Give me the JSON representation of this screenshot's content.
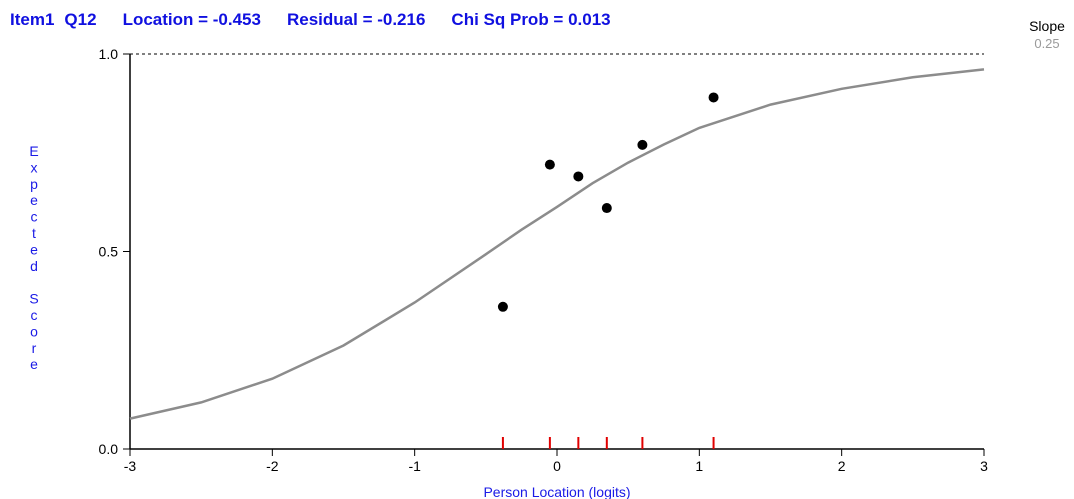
{
  "header": {
    "item": "Item1",
    "code": "Q12",
    "location": "Location = -0.453",
    "residual": "Residual = -0.216",
    "chi_sq": "Chi Sq Prob = 0.013"
  },
  "slope": {
    "label": "Slope",
    "value": "0.25"
  },
  "colors": {
    "title": "#1010e0",
    "axis_label": "#1a1ae6",
    "curve": "#8c8c8c",
    "points": "#000000",
    "rug": "#e00000"
  },
  "chart_data": {
    "type": "line",
    "title": "Item1 Q12",
    "xlabel": "Person Location (logits)",
    "ylabel": "Expected Score",
    "xlim": [
      -3,
      3
    ],
    "ylim": [
      0,
      1
    ],
    "x_ticks": [
      -3,
      -2,
      -1,
      0,
      1,
      2,
      3
    ],
    "x_tick_labels": [
      "-3",
      "-2",
      "-1",
      "0",
      "1",
      "2",
      "3"
    ],
    "y_ticks": [
      0.0,
      0.5,
      1.0
    ],
    "y_tick_labels": [
      "0.0",
      "0.5",
      "1.0"
    ],
    "reference_line": {
      "y": 1.0,
      "style": "dashed"
    },
    "grid": false,
    "series": [
      {
        "type": "line",
        "x": [
          -3.0,
          -2.5,
          -2.0,
          -1.5,
          -1.0,
          -0.5,
          -0.25,
          0.0,
          0.25,
          0.5,
          0.75,
          1.0,
          1.5,
          2.0,
          2.5,
          3.0
        ],
        "y": [
          0.077,
          0.118,
          0.178,
          0.262,
          0.371,
          0.493,
          0.555,
          0.613,
          0.673,
          0.725,
          0.771,
          0.813,
          0.872,
          0.912,
          0.941,
          0.961
        ]
      },
      {
        "type": "scatter",
        "x": [
          -0.38,
          -0.05,
          0.15,
          0.35,
          0.6,
          1.1
        ],
        "y": [
          0.36,
          0.72,
          0.69,
          0.61,
          0.77,
          0.89
        ]
      }
    ],
    "rug_x": [
      -0.38,
      -0.05,
      0.15,
      0.35,
      0.6,
      1.1
    ]
  }
}
